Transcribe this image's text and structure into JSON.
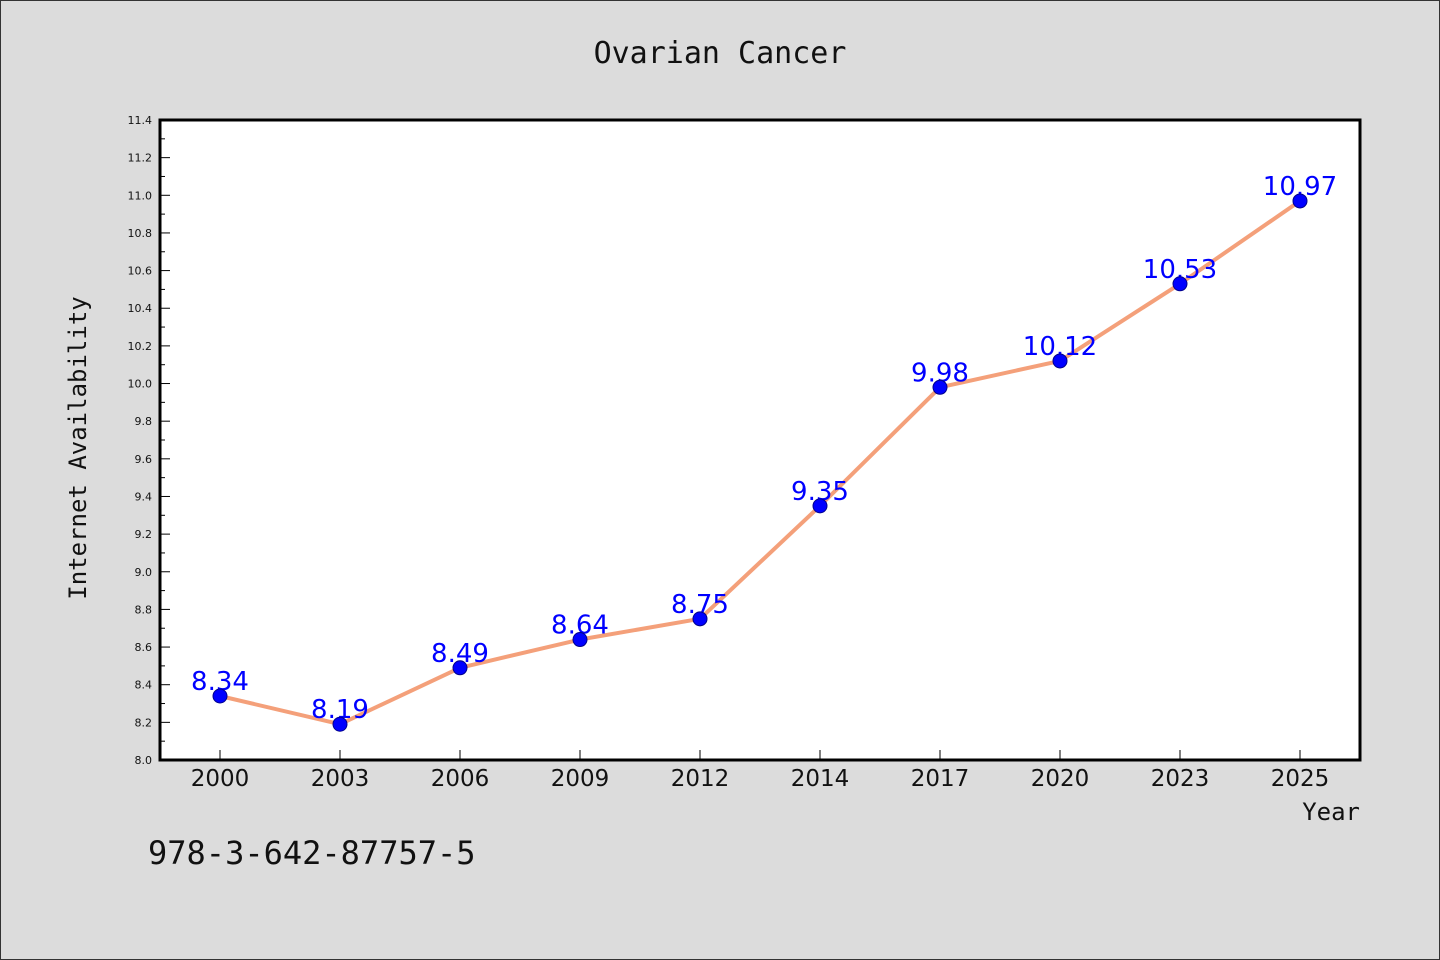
{
  "chart_data": {
    "type": "line",
    "title": "Ovarian Cancer",
    "xlabel": "Year",
    "ylabel": "Internet Availability",
    "categories": [
      "2000",
      "2003",
      "2006",
      "2009",
      "2012",
      "2014",
      "2017",
      "2020",
      "2023",
      "2025"
    ],
    "series": [
      {
        "values": [
          8.34,
          8.19,
          8.49,
          8.64,
          8.75,
          9.35,
          9.98,
          10.12,
          10.53,
          10.97
        ]
      }
    ],
    "data_labels": [
      "8.34",
      "8.19",
      "8.49",
      "8.64",
      "8.75",
      "9.35",
      "9.98",
      "10.12",
      "10.53",
      "10.97"
    ],
    "ylim": [
      8.0,
      11.4
    ],
    "yticks": [
      "8.0",
      "8.2",
      "8.4",
      "8.6",
      "8.8",
      "9.0",
      "9.2",
      "9.4",
      "9.6",
      "9.8",
      "10.0",
      "10.2",
      "10.4",
      "10.6",
      "10.8",
      "11.0",
      "11.2",
      "11.4"
    ],
    "grid": false,
    "line_color": "#f4a07a",
    "marker_color": "#0000ff",
    "label_color": "#0000ff"
  },
  "footnote": "978-3-642-87757-5"
}
